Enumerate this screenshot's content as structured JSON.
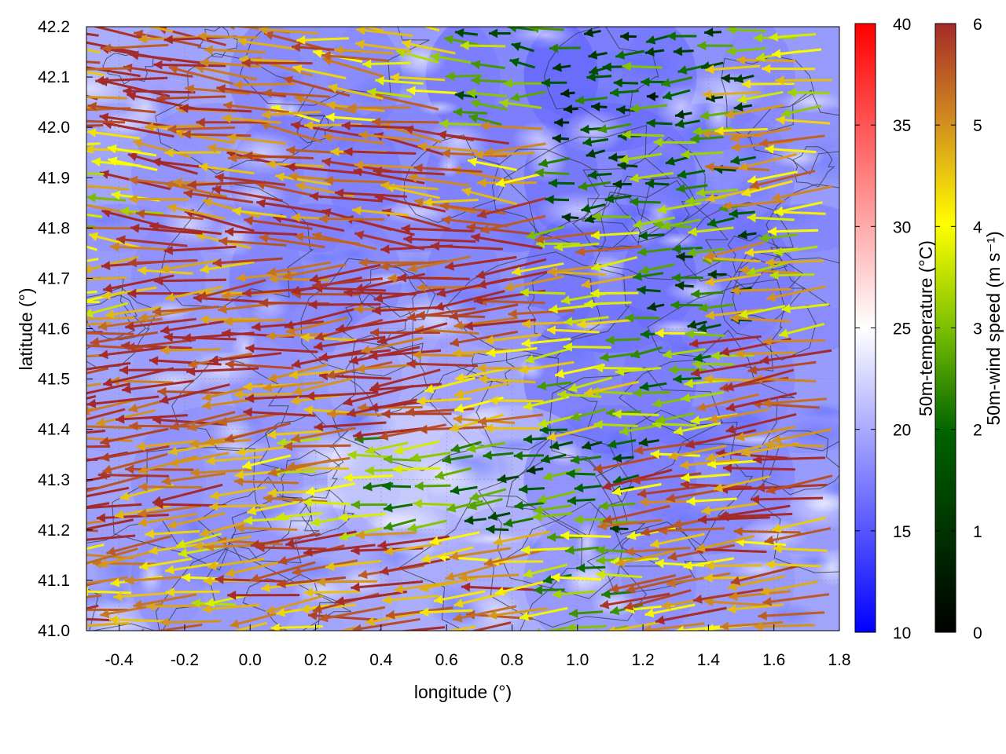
{
  "chart_data": {
    "type": "heatmap",
    "title": "",
    "xlabel": "longitude (°)",
    "ylabel": "latitude (°)",
    "xlim": [
      -0.5,
      1.8
    ],
    "ylim": [
      41.0,
      42.2
    ],
    "x_ticks": [
      -0.4,
      -0.2,
      0.0,
      0.2,
      0.4,
      0.6,
      0.8,
      1.0,
      1.2,
      1.4,
      1.6,
      1.8
    ],
    "x_tick_labels": [
      "-0.4",
      "-0.2",
      "0.0",
      "0.2",
      "0.4",
      "0.6",
      "0.8",
      "1.0",
      "1.2",
      "1.4",
      "1.6",
      "1.8"
    ],
    "y_ticks": [
      41.0,
      41.1,
      41.2,
      41.3,
      41.4,
      41.5,
      41.6,
      41.7,
      41.8,
      41.9,
      42.0,
      42.1,
      42.2
    ],
    "y_tick_labels": [
      "41.0",
      "41.1",
      "41.2",
      "41.3",
      "41.4",
      "41.5",
      "41.6",
      "41.7",
      "41.8",
      "41.9",
      "42.0",
      "42.1",
      "42.2"
    ],
    "grid": true,
    "temperature_colorbar": {
      "label": "50m-temperature (°C)",
      "range": [
        10,
        40
      ],
      "ticks": [
        10,
        15,
        20,
        25,
        30,
        35,
        40
      ],
      "tick_labels": [
        "10",
        "15",
        "20",
        "25",
        "30",
        "35",
        "40"
      ],
      "colors": [
        "#0000ff",
        "#ffffff",
        "#ff0000"
      ]
    },
    "wind_colorbar": {
      "label": "50m-wind speed (m s⁻¹)",
      "range": [
        0,
        6
      ],
      "ticks": [
        0,
        1,
        2,
        3,
        4,
        5,
        6
      ],
      "tick_labels": [
        "0",
        "1",
        "2",
        "3",
        "4",
        "5",
        "6"
      ],
      "colors": [
        "#000000",
        "#006400",
        "#ffff00",
        "#d28c1e",
        "#a52a2a"
      ]
    },
    "temperature_field_sample": {
      "lon": [
        -0.4,
        -0.1,
        0.2,
        0.5,
        0.8,
        1.1,
        1.4,
        1.7
      ],
      "lat": [
        42.1,
        41.9,
        41.7,
        41.5,
        41.3,
        41.1
      ],
      "celsius": [
        [
          20,
          19,
          17,
          18,
          16,
          15,
          17,
          18
        ],
        [
          19,
          18,
          17,
          17,
          17,
          16,
          17,
          18
        ],
        [
          18,
          18,
          17,
          18,
          17,
          16,
          16,
          17
        ],
        [
          19,
          19,
          18,
          20,
          19,
          16,
          17,
          18
        ],
        [
          19,
          18,
          19,
          23,
          21,
          17,
          17,
          18
        ],
        [
          19,
          18,
          19,
          20,
          20,
          18,
          18,
          19
        ]
      ]
    },
    "wind_field_sample": {
      "lon": [
        -0.4,
        -0.1,
        0.2,
        0.5,
        0.8,
        1.1,
        1.4,
        1.7
      ],
      "lat": [
        42.1,
        41.9,
        41.7,
        41.5,
        41.3,
        41.1
      ],
      "speed": [
        [
          5.5,
          5.8,
          5.0,
          4.5,
          2.5,
          1.5,
          2.0,
          4.0
        ],
        [
          4.0,
          5.5,
          5.5,
          5.5,
          5.0,
          2.0,
          2.5,
          4.5
        ],
        [
          4.5,
          5.5,
          6.0,
          6.0,
          6.0,
          4.5,
          2.0,
          4.0
        ],
        [
          6.0,
          6.0,
          5.5,
          6.0,
          5.0,
          3.5,
          3.0,
          5.5
        ],
        [
          6.0,
          5.5,
          4.5,
          3.0,
          2.0,
          2.0,
          5.0,
          5.5
        ],
        [
          5.0,
          4.5,
          5.0,
          5.5,
          5.0,
          3.0,
          5.0,
          5.0
        ]
      ],
      "direction": "easterly (arrows point west)"
    }
  }
}
